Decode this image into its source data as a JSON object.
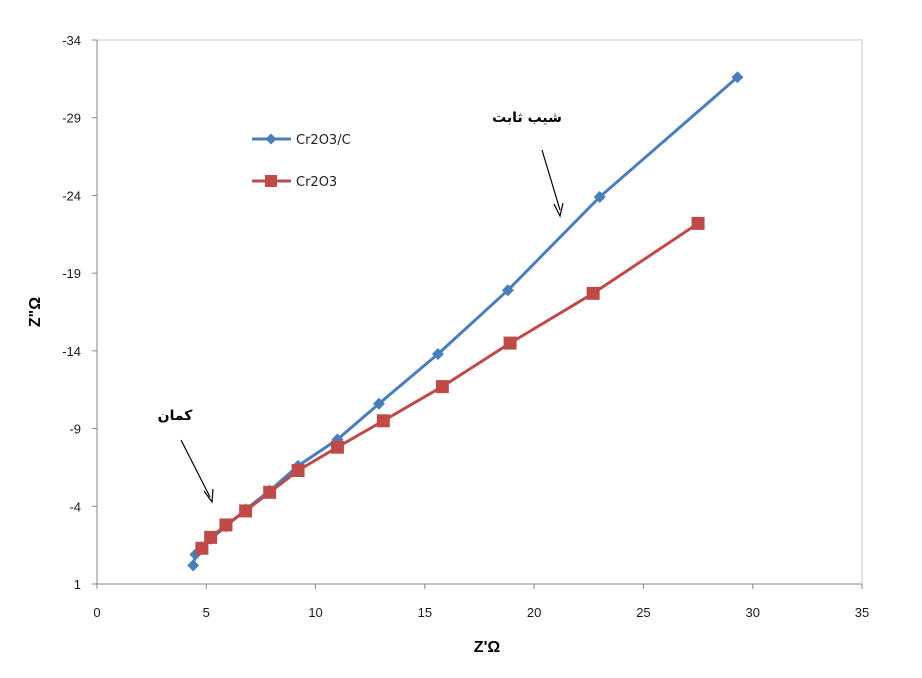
{
  "chart_data": {
    "type": "line",
    "xlabel": "Z'Ω",
    "ylabel": "Z\"Ω",
    "xlim": [
      0,
      35
    ],
    "ylim": [
      1,
      -34
    ],
    "y_axis_inverted": true,
    "xticks": [
      "0",
      "5",
      "10",
      "15",
      "20",
      "25",
      "30",
      "35"
    ],
    "yticks": [
      "-34",
      "-29",
      "-24",
      "-19",
      "-14",
      "-9",
      "-4",
      "1"
    ],
    "x_tick_values": [
      0,
      5,
      10,
      15,
      20,
      25,
      30,
      35
    ],
    "y_tick_values": [
      -34,
      -29,
      -24,
      -19,
      -14,
      -9,
      -4,
      1
    ],
    "grid": false,
    "legend_position": "top-left",
    "series": [
      {
        "name": "Cr2O3/C",
        "color": "#4a7ebb",
        "marker": "diamond",
        "points": [
          [
            4.4,
            -0.2
          ],
          [
            4.5,
            -0.9
          ],
          [
            5.2,
            -1.9
          ],
          [
            5.9,
            -2.7
          ],
          [
            6.8,
            -3.8
          ],
          [
            7.9,
            -5.0
          ],
          [
            9.2,
            -6.6
          ],
          [
            11.0,
            -8.3
          ],
          [
            12.9,
            -10.6
          ],
          [
            15.6,
            -13.8
          ],
          [
            18.8,
            -17.9
          ],
          [
            23.0,
            -23.9
          ],
          [
            29.3,
            -31.6
          ]
        ]
      },
      {
        "name": "Cr2O3",
        "color": "#be4b48",
        "marker": "square",
        "points": [
          [
            4.8,
            -1.3
          ],
          [
            5.2,
            -2.0
          ],
          [
            5.9,
            -2.8
          ],
          [
            6.8,
            -3.7
          ],
          [
            7.9,
            -4.9
          ],
          [
            9.2,
            -6.3
          ],
          [
            11.0,
            -7.8
          ],
          [
            13.1,
            -9.5
          ],
          [
            15.8,
            -11.7
          ],
          [
            18.9,
            -14.5
          ],
          [
            22.7,
            -17.7
          ],
          [
            27.5,
            -22.2
          ]
        ]
      }
    ],
    "annotations": [
      {
        "text": "شیب ثابت"
      },
      {
        "text": "کمان"
      }
    ]
  }
}
